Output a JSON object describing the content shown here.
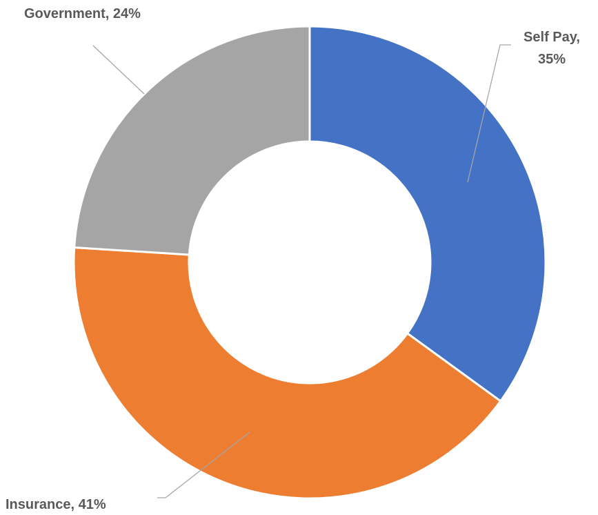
{
  "chart_data": {
    "type": "pie",
    "donut": true,
    "categories": [
      "Self Pay",
      "Insurance",
      "Government"
    ],
    "values": [
      35,
      41,
      24
    ],
    "value_unit": "%",
    "labels": [
      {
        "category": "Self Pay",
        "lines": [
          "Self Pay,",
          "35%"
        ]
      },
      {
        "category": "Insurance",
        "lines": [
          "Insurance, 41%"
        ]
      },
      {
        "category": "Government",
        "lines": [
          "Government, 24%"
        ]
      }
    ],
    "colors": [
      "#4472C4",
      "#ED7D31",
      "#A5A5A5"
    ],
    "label_color": "#595959",
    "leader_line_color": "#A6A6A6",
    "start_angle": "12 o'clock",
    "direction": "clockwise",
    "legend": "none"
  }
}
